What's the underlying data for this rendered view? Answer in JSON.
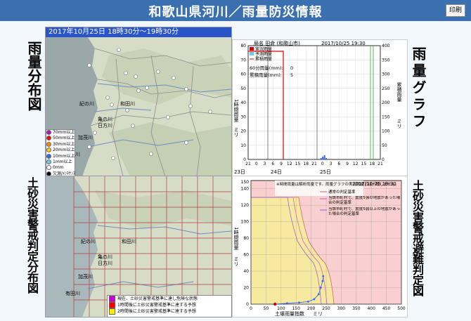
{
  "header": {
    "title": "和歌山県河川／雨量防災情報",
    "print_label": "印刷"
  },
  "side_labels": {
    "rain_map": "雨量分布図",
    "rain_graph": "雨量グラフ",
    "landslide_map": "土砂災害警戒判定分布図",
    "evacuation": "土砂災害警戒避難判定図"
  },
  "rain_map": {
    "caption": "2017年10月25日 18時30分～19時30分",
    "places": [
      "紀の川",
      "和田川",
      "亀の川",
      "日方川",
      "加茂川",
      "有田川"
    ],
    "legend": [
      {
        "label": "70mm以上",
        "color": "#cc00cc"
      },
      {
        "label": "50mm以上",
        "color": "#ff0000"
      },
      {
        "label": "30mm以上",
        "color": "#ff8800"
      },
      {
        "label": "20mm以上",
        "color": "#ffcc00"
      },
      {
        "label": "10mm以上",
        "color": "#3366ff"
      },
      {
        "label": "1mm以上",
        "color": "#66ccff"
      },
      {
        "label": "0mm",
        "color": "#ffffff"
      },
      {
        "label": "欠測/ﾒﾝﾃﾅﾝｽ",
        "color": "#000000"
      }
    ]
  },
  "landslide_map": {
    "places": [
      "紀の川",
      "和田川",
      "亀の川",
      "日方川",
      "加茂川",
      "有田川"
    ],
    "warnings": [
      {
        "label": "現在、土砂災害警戒基準に達し危険な状態",
        "color": "#cc00cc"
      },
      {
        "label": "1時間後に土砂災害警戒基準に達する予想",
        "color": "#ff0000"
      },
      {
        "label": "2時間後に土砂災害警戒基準に達する予想",
        "color": "#ffee00"
      }
    ]
  },
  "rain_graph": {
    "station": "局名 田倉 (和歌山市)",
    "datetime": "2017/10/25 19:30",
    "legend": [
      "実況雨量",
      "予測雨量",
      "累積雨量"
    ],
    "stat1_label": "60分雨量(mm):",
    "stat1_value": "0",
    "stat2_label": "累積雨量(mm):",
    "stat2_value": "5",
    "left_axis_label": "1時間雨量",
    "left_unit": "ミリ",
    "right_axis_label": "累積雨量",
    "right_unit": "ミリ",
    "day_labels": [
      "23日",
      "24日",
      "25日"
    ]
  },
  "evac_graph": {
    "notice": "※時間雨量は解析雨量です。雨量グラフの実況雨量とは一致しません。",
    "datetime": "2017/10/25 19:30",
    "left_axis_label": "1時間雨量",
    "left_unit": "ミリ",
    "x_label": "土壌雨量指数",
    "x_unit": "ミリ",
    "legend": [
      "通常の判定基準",
      "当該市町村で、震度5強の地震があった場合の判定基準",
      "当該市町村で、震度5弱以上の地震があった場合の判定基準"
    ]
  },
  "chart_data": [
    {
      "type": "bar",
      "title": "",
      "x_ticks": [
        "21",
        "0",
        "3",
        "6",
        "9",
        "12",
        "15",
        "18",
        "21",
        "0",
        "3",
        "6",
        "9",
        "12",
        "15",
        "18",
        "21"
      ],
      "yticks_left": [
        0,
        10,
        20,
        30,
        40,
        50,
        60,
        70,
        80
      ],
      "yticks_right": [
        0,
        50,
        100,
        150,
        200,
        250,
        300,
        350,
        400
      ],
      "ylim_left": [
        0,
        80
      ],
      "ylim_right": [
        0,
        400
      ],
      "ylabel": "1時間雨量",
      "ylabel_right": "累積雨量",
      "series": [
        {
          "name": "実況雨量",
          "values": [
            0,
            0,
            1,
            2,
            3,
            1
          ]
        },
        {
          "name": "累積雨量",
          "values": [
            0,
            0,
            5
          ]
        }
      ]
    },
    {
      "type": "line",
      "title": "",
      "xlabel": "土壌雨量指数",
      "ylabel": "1時間雨量",
      "x_ticks": [
        0,
        50,
        100,
        150,
        200,
        250,
        300,
        350,
        400,
        450,
        500
      ],
      "y_ticks": [
        0,
        20,
        40,
        60,
        80,
        100,
        120,
        140
      ],
      "xlim": [
        0,
        500
      ],
      "ylim": [
        0,
        150
      ],
      "series": [
        {
          "name": "trajectory",
          "x": [
            80,
            120,
            160,
            190,
            210,
            225,
            232,
            238,
            240
          ],
          "y": [
            0,
            1,
            2,
            3,
            6,
            12,
            20,
            28,
            34
          ]
        }
      ]
    }
  ]
}
